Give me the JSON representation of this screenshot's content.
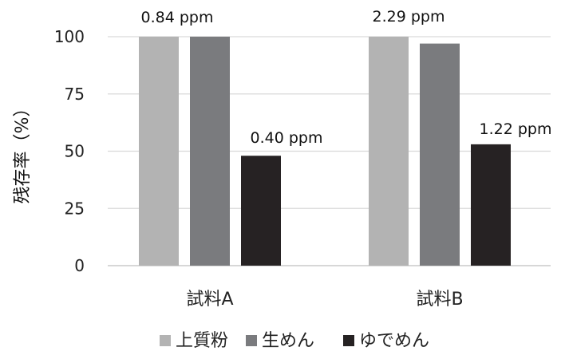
{
  "chart_data": {
    "type": "bar",
    "ylabel": "残存率（%）",
    "ylim": [
      0,
      100
    ],
    "yticks": [
      0,
      25,
      50,
      75,
      100
    ],
    "grid": true,
    "legend_position": "bottom",
    "categories": [
      "試料A",
      "試料B"
    ],
    "series": [
      {
        "name": "上質粉",
        "color": "#b3b3b3",
        "values": [
          100,
          100
        ]
      },
      {
        "name": "生めん",
        "color": "#7a7b7e",
        "values": [
          100,
          97
        ]
      },
      {
        "name": "ゆでめん",
        "color": "#262223",
        "values": [
          48,
          53
        ]
      }
    ],
    "annotations": [
      {
        "category": 0,
        "text": "0.84 ppm"
      },
      {
        "category": 0,
        "text": "0.40 ppm"
      },
      {
        "category": 1,
        "text": "2.29 ppm"
      },
      {
        "category": 1,
        "text": "1.22 ppm"
      }
    ]
  }
}
